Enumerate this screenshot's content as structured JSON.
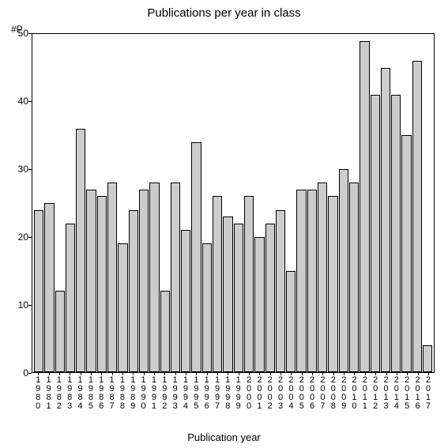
{
  "chart": {
    "type": "bar",
    "title": "Publications per year in class",
    "title_fontsize": 15,
    "y_axis_unit_label": "#P",
    "x_axis_label": "Publication year",
    "label_fontsize": 13,
    "background_color": "#ffffff",
    "bar_fill_color": "#cccccc",
    "bar_border_color": "#000000",
    "axis_color": "#000000",
    "text_color": "#000000",
    "ylim": [
      0,
      50
    ],
    "yticks": [
      0,
      10,
      20,
      30,
      40,
      50
    ],
    "categories": [
      "1980",
      "1981",
      "1982",
      "1983",
      "1984",
      "1985",
      "1986",
      "1987",
      "1988",
      "1989",
      "1990",
      "1991",
      "1992",
      "1993",
      "1994",
      "1995",
      "1996",
      "1997",
      "1998",
      "1999",
      "2000",
      "2001",
      "2002",
      "2003",
      "2004",
      "2005",
      "2006",
      "2007",
      "2008",
      "2009",
      "2010",
      "2011",
      "2012",
      "2013",
      "2014",
      "2015",
      "2016",
      "2017"
    ],
    "values": [
      24,
      25,
      12,
      22,
      36,
      27,
      26,
      28,
      19,
      24,
      27,
      28,
      12,
      28,
      21,
      34,
      19,
      26,
      23,
      22,
      26,
      20,
      22,
      24,
      15,
      27,
      27,
      28,
      26,
      30,
      28,
      49,
      41,
      45,
      41,
      35,
      46,
      4
    ],
    "tick_fontsize": 12,
    "xlabel_fontsize": 11
  }
}
